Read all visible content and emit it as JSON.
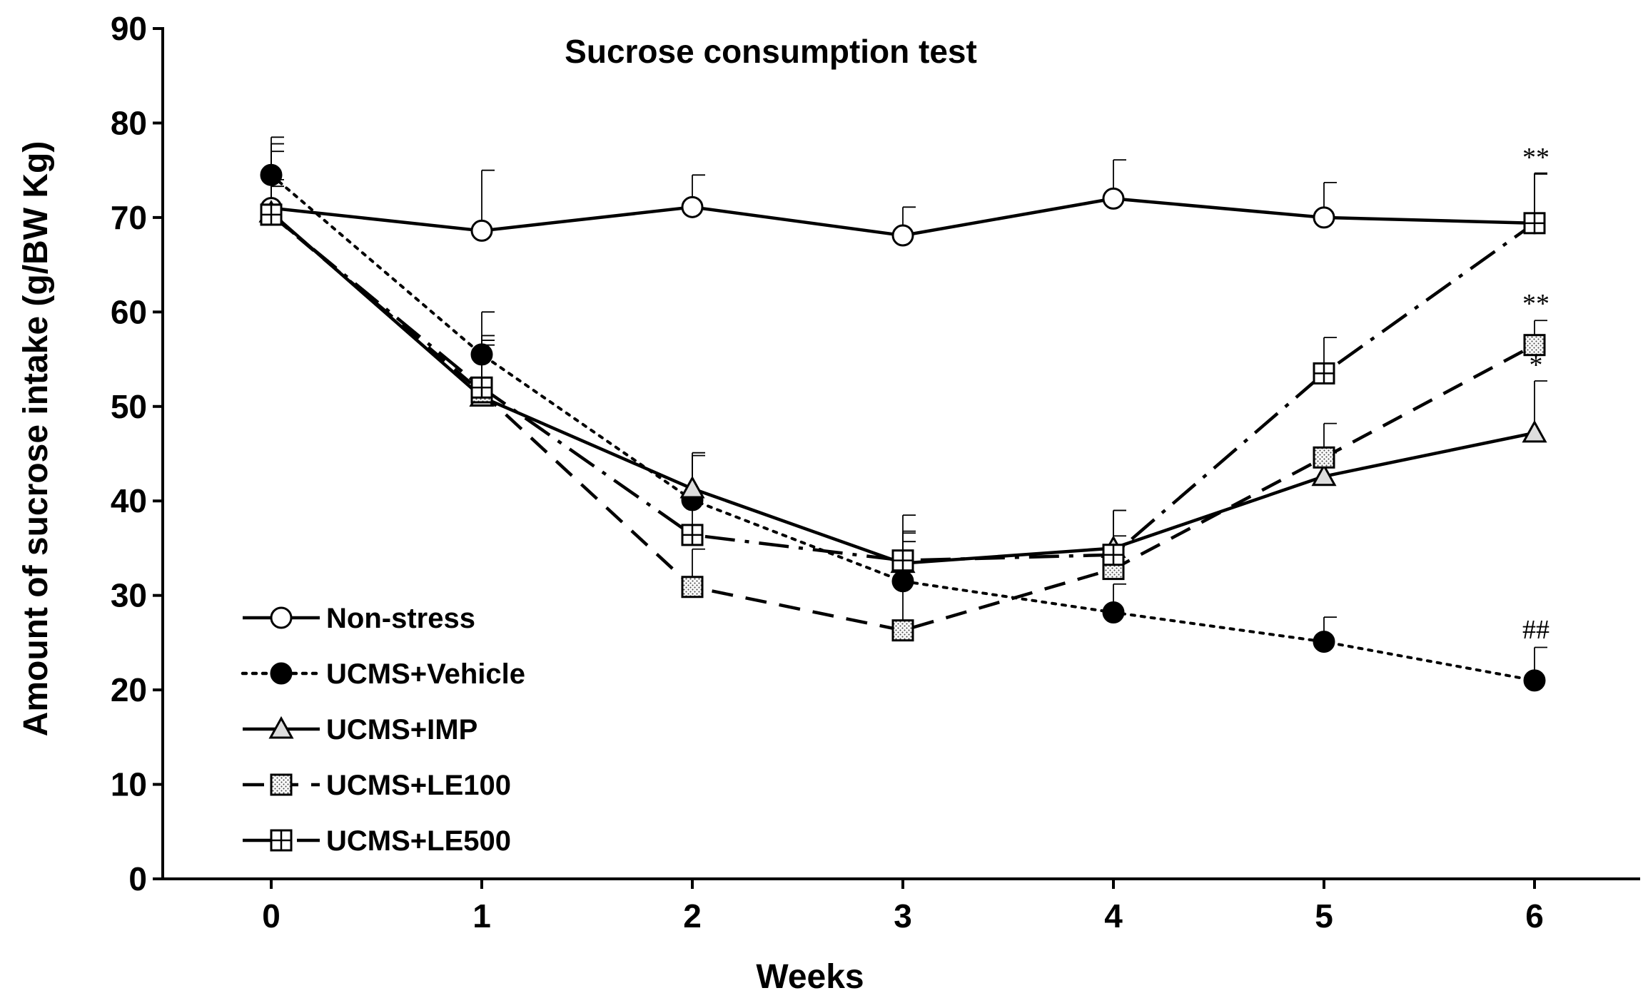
{
  "chart_data": {
    "type": "line",
    "title": "Sucrose consumption test",
    "xlabel": "Weeks",
    "ylabel": "Amount of sucrose intake (g/BW Kg)",
    "x": [
      0,
      1,
      2,
      3,
      4,
      5,
      6
    ],
    "xticks": [
      "0",
      "1",
      "2",
      "3",
      "4",
      "5",
      "6"
    ],
    "yticks": [
      "0",
      "10",
      "20",
      "30",
      "40",
      "50",
      "60",
      "70",
      "80",
      "90"
    ],
    "ylim": [
      0,
      90
    ],
    "grid": false,
    "legend_position": "bottom-left",
    "series": [
      {
        "name": "Non-stress",
        "values": [
          71.0,
          68.6,
          71.1,
          68.1,
          72.0,
          70.0,
          69.4
        ],
        "errors": [
          6.0,
          6.4,
          3.4,
          3.0,
          4.1,
          3.7,
          5.2
        ],
        "marker": "circle-open",
        "line": "solid"
      },
      {
        "name": "UCMS+Vehicle",
        "values": [
          74.5,
          55.5,
          40.1,
          31.5,
          28.2,
          25.1,
          21.0
        ],
        "errors": [
          4.0,
          4.5,
          5.0,
          4.2,
          3.0,
          2.6,
          3.5
        ],
        "marker": "circle-filled",
        "line": "dotted"
      },
      {
        "name": "UCMS+IMP",
        "values": [
          70.5,
          51.0,
          41.3,
          33.4,
          35.0,
          42.6,
          47.2
        ],
        "errors": [
          3.5,
          5.5,
          3.5,
          3.2,
          4.0,
          2.5,
          5.5
        ],
        "marker": "triangle",
        "line": "solid"
      },
      {
        "name": "UCMS+LE100",
        "values": [
          70.3,
          51.5,
          30.9,
          26.3,
          32.8,
          44.6,
          56.5
        ],
        "errors": [
          3.0,
          6.0,
          4.0,
          10.5,
          3.5,
          3.6,
          2.6
        ],
        "marker": "square-dotted",
        "line": "dashed"
      },
      {
        "name": "UCMS+LE500",
        "values": [
          70.3,
          52.0,
          36.4,
          33.7,
          34.3,
          53.5,
          69.4
        ],
        "errors": [
          7.5,
          5.0,
          4.5,
          4.8,
          4.7,
          3.8,
          5.3
        ],
        "marker": "square-cross",
        "line": "dash-dot"
      }
    ],
    "annotations": [
      {
        "text": "**",
        "x": 6,
        "y": 76.5
      },
      {
        "text": "**",
        "x": 6,
        "y": 61.0
      },
      {
        "text": "*",
        "x": 6,
        "y": 54.5
      },
      {
        "text": "##",
        "x": 6,
        "y": 26.5
      }
    ]
  }
}
